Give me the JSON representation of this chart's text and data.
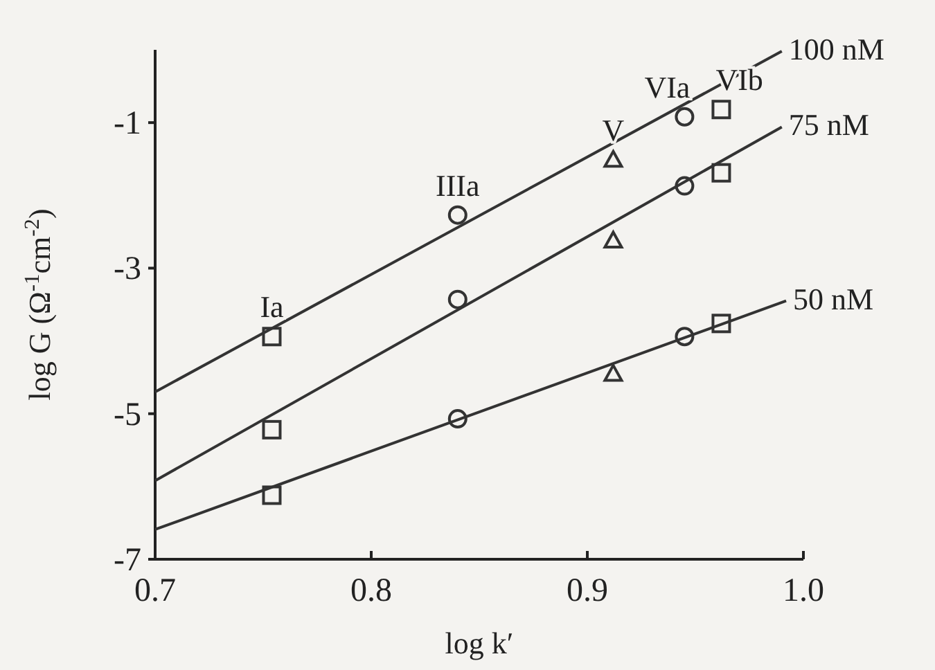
{
  "chart_data": {
    "type": "scatter",
    "xlabel": "log k′",
    "ylabel": "log G (Ω$^{-1}$cm$^{-2}$)",
    "xlim": [
      0.7,
      1.0
    ],
    "ylim": [
      -7,
      0
    ],
    "xticks": [
      {
        "value": 0.7,
        "label": "0.7"
      },
      {
        "value": 0.8,
        "label": "0.8"
      },
      {
        "value": 0.9,
        "label": "0.9"
      },
      {
        "value": 1.0,
        "label": "1.0"
      }
    ],
    "yticks": [
      -7,
      -5,
      -3,
      -1
    ],
    "grid": false,
    "legend": false,
    "series": [
      {
        "name": "Ia",
        "marker": "square",
        "color": "#333333",
        "x": [
          0.754,
          0.754,
          0.754
        ],
        "values": [
          -3.94,
          -5.22,
          -6.12
        ]
      },
      {
        "name": "IIIa",
        "marker": "circle",
        "color": "#333333",
        "x": [
          0.84,
          0.84,
          0.84
        ],
        "values": [
          -2.27,
          -3.43,
          -5.07
        ]
      },
      {
        "name": "V",
        "marker": "triangle",
        "color": "#333333",
        "x": [
          0.912,
          0.912,
          0.912
        ],
        "values": [
          -1.51,
          -2.62,
          -4.45
        ]
      },
      {
        "name": "VIa",
        "marker": "circle",
        "color": "#333333",
        "x": [
          0.945,
          0.945,
          0.945
        ],
        "values": [
          -0.92,
          -1.87,
          -3.94
        ]
      },
      {
        "name": "VIb",
        "marker": "square",
        "color": "#333333",
        "x": [
          0.962,
          0.962,
          0.962
        ],
        "values": [
          -0.82,
          -1.69,
          -3.76
        ]
      },
      {
        "name": "100 nM",
        "type": "line",
        "line_style": "solid",
        "color": "#333333",
        "x": [
          0.7,
          0.99
        ],
        "values": [
          -4.7,
          -0.02
        ]
      },
      {
        "name": "75 nM",
        "type": "line",
        "line_style": "solid",
        "color": "#333333",
        "x": [
          0.7,
          0.99
        ],
        "values": [
          -5.92,
          -1.06
        ]
      },
      {
        "name": "50 nM",
        "type": "line",
        "line_style": "solid",
        "color": "#333333",
        "x": [
          0.7,
          0.992
        ],
        "values": [
          -6.59,
          -3.45
        ]
      }
    ]
  }
}
